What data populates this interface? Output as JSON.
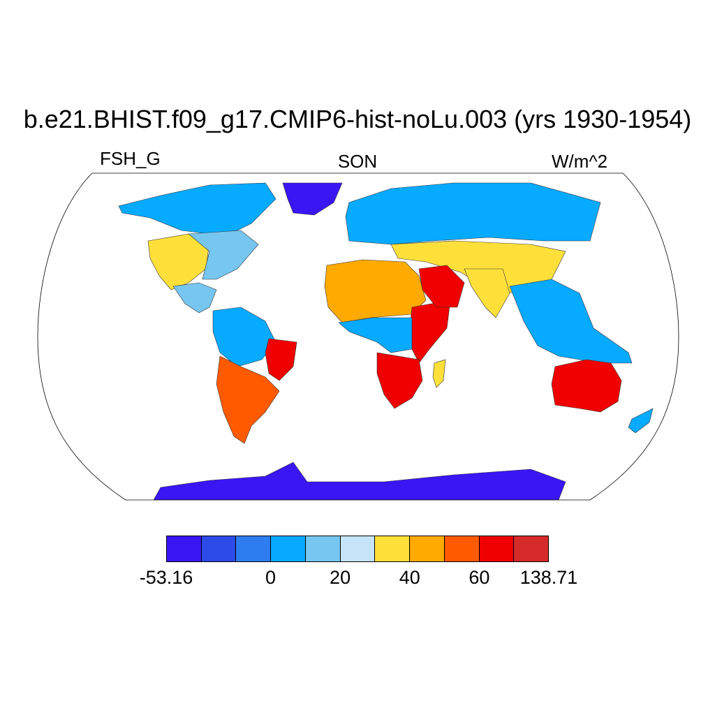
{
  "title": "b.e21.BHIST.f09_g17.CMIP6-hist-noLu.003 (yrs 1930-1954)",
  "variable": "FSH_G",
  "season": "SON",
  "units": "W/m^2",
  "colorbar": {
    "colors": [
      "#3a16f5",
      "#2c4be8",
      "#2e7df0",
      "#06aaff",
      "#76c6f0",
      "#c6e4f7",
      "#ffe03a",
      "#ffaa00",
      "#ff5a00",
      "#f00000",
      "#d42a2a"
    ],
    "labels": [
      {
        "text": "-53.16",
        "boundary": 0
      },
      {
        "text": "0",
        "boundary": 3
      },
      {
        "text": "20",
        "boundary": 5
      },
      {
        "text": "40",
        "boundary": 7
      },
      {
        "text": "60",
        "boundary": 9
      },
      {
        "text": "138.71",
        "boundary": 11
      }
    ]
  },
  "map": {
    "projection": "Robinson",
    "ocean_color": "#ffffff",
    "regions": [
      {
        "name": "greenland",
        "value": -53
      },
      {
        "name": "north-america-north",
        "value": 10
      },
      {
        "name": "north-america-southwest",
        "value": 45
      },
      {
        "name": "north-america-east",
        "value": 20
      },
      {
        "name": "central-america",
        "value": 25
      },
      {
        "name": "south-america-amazon",
        "value": 15
      },
      {
        "name": "south-america-east",
        "value": 70
      },
      {
        "name": "south-america-south",
        "value": 60
      },
      {
        "name": "europe-north-asia",
        "value": 10
      },
      {
        "name": "mid-latitude-asia",
        "value": 40
      },
      {
        "name": "sahara",
        "value": 55
      },
      {
        "name": "east-africa",
        "value": 70
      },
      {
        "name": "central-africa",
        "value": 15
      },
      {
        "name": "southern-africa",
        "value": 70
      },
      {
        "name": "madagascar",
        "value": 45
      },
      {
        "name": "arabia",
        "value": 70
      },
      {
        "name": "india",
        "value": 40
      },
      {
        "name": "southeast-asia",
        "value": 10
      },
      {
        "name": "australia",
        "value": 70
      },
      {
        "name": "new-zealand",
        "value": 15
      },
      {
        "name": "antarctica",
        "value": -53
      }
    ]
  }
}
